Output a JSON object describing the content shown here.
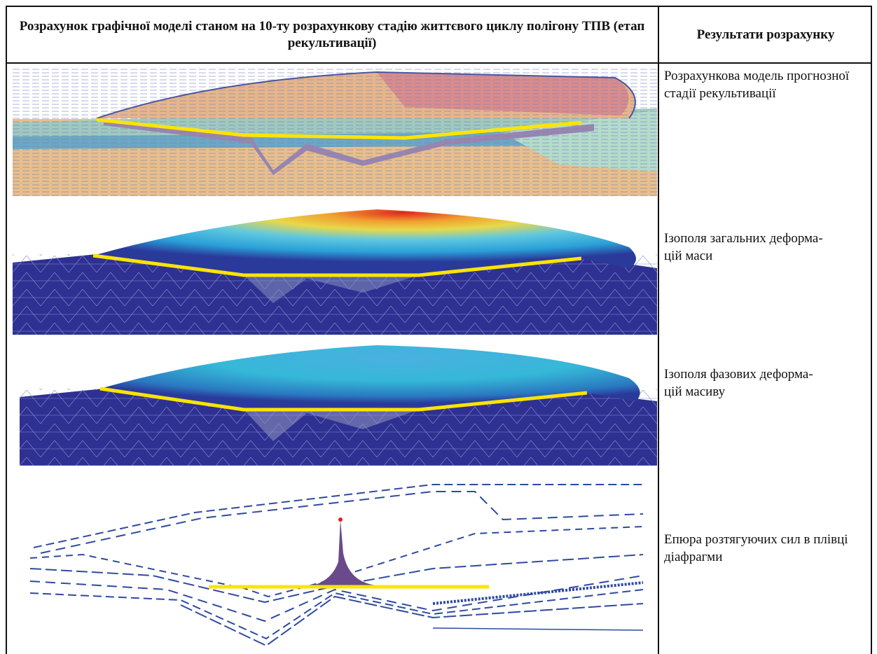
{
  "header": {
    "columns": [
      "Розрахунок графічної моделі станом на 10-ту розрахункову стадію життєвого циклу полігону ТПВ (етап рекультивації)",
      "Результати розрахунку"
    ]
  },
  "rows": [
    {
      "caption": "Розрахункова модель прогнозної стадії рекультивації"
    },
    {
      "caption": "Ізополя загальних деформа-\nцій маси"
    },
    {
      "caption": "Ізополя фазових деформа-\nцій масиву"
    },
    {
      "caption": "Епюра розтягуючих сил в плівці діафрагми"
    }
  ]
}
